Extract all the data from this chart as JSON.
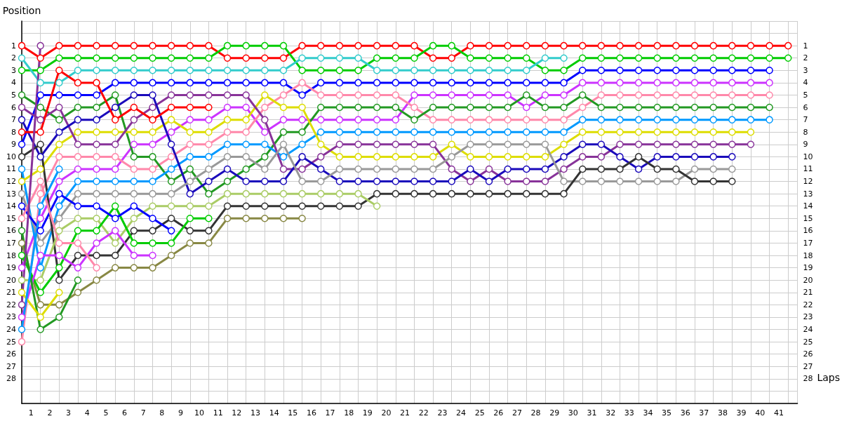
{
  "chart_data": {
    "type": "line",
    "xlabel": "Laps",
    "ylabel": "Position",
    "x": [
      0,
      1,
      2,
      3,
      4,
      5,
      6,
      7,
      8,
      9,
      10,
      11,
      12,
      13,
      14,
      15,
      16,
      17,
      18,
      19,
      20,
      21,
      22,
      23,
      24,
      25,
      26,
      27,
      28,
      29,
      30,
      31,
      32,
      33,
      34,
      35,
      36,
      37,
      38,
      39,
      40,
      41
    ],
    "xlim": [
      0,
      41.5
    ],
    "xticks": [
      {
        "value": 0.5,
        "label": "1"
      },
      {
        "value": 1.5,
        "label": "2"
      },
      {
        "value": 2.5,
        "label": "3"
      },
      {
        "value": 3.5,
        "label": "4"
      },
      {
        "value": 4.5,
        "label": "5"
      },
      {
        "value": 5.5,
        "label": "6"
      },
      {
        "value": 6.5,
        "label": "7"
      },
      {
        "value": 7.5,
        "label": "8"
      },
      {
        "value": 8.5,
        "label": "9"
      },
      {
        "value": 9.5,
        "label": "10"
      },
      {
        "value": 10.5,
        "label": "11"
      },
      {
        "value": 11.5,
        "label": "12"
      },
      {
        "value": 12.5,
        "label": "13"
      },
      {
        "value": 13.5,
        "label": "14"
      },
      {
        "value": 14.5,
        "label": "15"
      },
      {
        "value": 15.5,
        "label": "16"
      },
      {
        "value": 16.5,
        "label": "17"
      },
      {
        "value": 17.5,
        "label": "18"
      },
      {
        "value": 18.5,
        "label": "19"
      },
      {
        "value": 19.5,
        "label": "20"
      },
      {
        "value": 20.5,
        "label": "21"
      },
      {
        "value": 21.5,
        "label": "22"
      },
      {
        "value": 22.5,
        "label": "23"
      },
      {
        "value": 23.5,
        "label": "24"
      },
      {
        "value": 24.5,
        "label": "25"
      },
      {
        "value": 25.5,
        "label": "26"
      },
      {
        "value": 26.5,
        "label": "27"
      },
      {
        "value": 27.5,
        "label": "28"
      },
      {
        "value": 28.5,
        "label": "29"
      },
      {
        "value": 29.5,
        "label": "30"
      },
      {
        "value": 30.5,
        "label": "31"
      },
      {
        "value": 31.5,
        "label": "32"
      },
      {
        "value": 32.5,
        "label": "33"
      },
      {
        "value": 33.5,
        "label": "34"
      },
      {
        "value": 34.5,
        "label": "35"
      },
      {
        "value": 35.5,
        "label": "36"
      },
      {
        "value": 36.5,
        "label": "37"
      },
      {
        "value": 37.5,
        "label": "38"
      },
      {
        "value": 38.5,
        "label": "39"
      },
      {
        "value": 39.5,
        "label": "40"
      },
      {
        "value": 40.5,
        "label": "41"
      }
    ],
    "ylim": [
      30,
      -1
    ],
    "yticks": [
      1,
      2,
      3,
      4,
      5,
      6,
      7,
      8,
      9,
      10,
      11,
      12,
      13,
      14,
      15,
      16,
      17,
      18,
      19,
      20,
      21,
      22,
      23,
      24,
      25,
      26,
      27,
      28
    ],
    "y2lim": [
      30,
      -1
    ],
    "y2ticks": [
      1,
      2,
      3,
      4,
      5,
      6,
      7,
      8,
      9,
      10,
      11,
      12,
      13,
      14,
      15,
      16,
      17,
      18,
      19,
      20,
      21,
      22,
      23,
      24,
      25,
      26,
      27,
      28
    ],
    "grid": true,
    "marker": "circle",
    "line_style": "solid",
    "series": [
      {
        "color": "#ff0000",
        "values": [
          1,
          2,
          1,
          1,
          1,
          1,
          1,
          1,
          1,
          1,
          1,
          2,
          2,
          2,
          2,
          1,
          1,
          1,
          1,
          1,
          1,
          1,
          2,
          2,
          1,
          1,
          1,
          1,
          1,
          1,
          1,
          1,
          1,
          1,
          1,
          1,
          1,
          1,
          1,
          1,
          1,
          1
        ]
      },
      {
        "color": "#00cc00",
        "values": [
          3,
          3,
          2,
          2,
          2,
          2,
          2,
          2,
          2,
          2,
          2,
          1,
          1,
          1,
          1,
          3,
          3,
          3,
          3,
          2,
          2,
          2,
          1,
          1,
          2,
          2,
          2,
          2,
          3,
          3,
          2,
          2,
          2,
          2,
          2,
          2,
          2,
          2,
          2,
          2,
          2,
          2
        ]
      },
      {
        "color": "#33cccc",
        "values": [
          2,
          4,
          4,
          3,
          3,
          3,
          3,
          3,
          3,
          3,
          3,
          3,
          3,
          3,
          3,
          2,
          2,
          2,
          2,
          3,
          3,
          3,
          3,
          3,
          3,
          3,
          3,
          3,
          2,
          2,
          null,
          null,
          null,
          null,
          null,
          null,
          null,
          null,
          null,
          null,
          null,
          null
        ]
      },
      {
        "color": "#0000ff",
        "values": [
          9,
          5,
          5,
          5,
          5,
          4,
          4,
          4,
          4,
          4,
          4,
          4,
          4,
          4,
          4,
          5,
          4,
          4,
          4,
          4,
          4,
          4,
          4,
          4,
          4,
          4,
          4,
          4,
          4,
          4,
          3,
          3,
          3,
          3,
          3,
          3,
          3,
          3,
          3,
          3,
          3,
          null
        ]
      },
      {
        "color": "#cc33ff",
        "values": [
          19,
          15,
          12,
          11,
          11,
          11,
          9,
          9,
          8,
          7,
          7,
          6,
          6,
          8,
          7,
          7,
          7,
          7,
          7,
          7,
          7,
          5,
          5,
          5,
          5,
          5,
          5,
          6,
          5,
          5,
          4,
          4,
          4,
          4,
          4,
          4,
          4,
          4,
          4,
          4,
          4,
          null
        ]
      },
      {
        "color": "#ff88aa",
        "values": [
          25,
          13,
          10,
          10,
          10,
          10,
          11,
          11,
          10,
          9,
          9,
          8,
          8,
          6,
          5,
          4,
          5,
          5,
          5,
          5,
          5,
          6,
          7,
          7,
          7,
          7,
          7,
          7,
          7,
          7,
          6,
          5,
          5,
          5,
          5,
          5,
          5,
          5,
          5,
          5,
          5,
          null
        ]
      },
      {
        "color": "#229922",
        "values": [
          5,
          6,
          7,
          6,
          6,
          5,
          10,
          10,
          12,
          11,
          13,
          12,
          11,
          10,
          8,
          8,
          6,
          6,
          6,
          6,
          6,
          7,
          6,
          6,
          6,
          6,
          6,
          5,
          6,
          6,
          5,
          6,
          6,
          6,
          6,
          6,
          6,
          6,
          6,
          6,
          6,
          null
        ]
      },
      {
        "color": "#0099ff",
        "values": [
          11,
          19,
          14,
          12,
          12,
          12,
          12,
          12,
          11,
          10,
          10,
          9,
          9,
          9,
          10,
          9,
          8,
          8,
          8,
          8,
          8,
          8,
          8,
          8,
          8,
          8,
          8,
          8,
          8,
          8,
          7,
          7,
          7,
          7,
          7,
          7,
          7,
          7,
          7,
          7,
          7,
          null
        ]
      },
      {
        "color": "#dddd00",
        "values": [
          12,
          11,
          9,
          8,
          8,
          8,
          8,
          8,
          7,
          8,
          8,
          7,
          7,
          5,
          6,
          6,
          9,
          10,
          10,
          10,
          10,
          10,
          10,
          9,
          10,
          10,
          10,
          10,
          10,
          9,
          8,
          8,
          8,
          8,
          8,
          8,
          8,
          8,
          8,
          8,
          null,
          null
        ]
      },
      {
        "color": "#883399",
        "values": [
          6,
          7,
          6,
          9,
          9,
          9,
          7,
          6,
          5,
          5,
          5,
          5,
          5,
          7,
          11,
          11,
          10,
          9,
          9,
          9,
          9,
          9,
          9,
          11,
          12,
          11,
          12,
          12,
          12,
          11,
          10,
          10,
          9,
          9,
          9,
          9,
          9,
          9,
          9,
          9,
          null,
          null
        ]
      },
      {
        "color": "#1a0abb",
        "values": [
          7,
          10,
          8,
          7,
          7,
          6,
          5,
          5,
          9,
          13,
          12,
          11,
          12,
          12,
          12,
          10,
          11,
          12,
          12,
          12,
          12,
          12,
          12,
          12,
          11,
          12,
          11,
          11,
          11,
          10,
          9,
          9,
          10,
          11,
          10,
          10,
          10,
          10,
          10,
          null,
          null,
          null
        ]
      },
      {
        "color": "#999999",
        "values": [
          13,
          17,
          15,
          13,
          13,
          13,
          13,
          13,
          13,
          12,
          11,
          10,
          10,
          11,
          9,
          12,
          12,
          11,
          11,
          11,
          11,
          11,
          11,
          10,
          9,
          9,
          9,
          9,
          9,
          12,
          12,
          12,
          12,
          12,
          12,
          12,
          11,
          11,
          11,
          null,
          null,
          null
        ]
      },
      {
        "color": "#333333",
        "values": [
          10,
          9,
          20,
          18,
          18,
          18,
          16,
          16,
          15,
          16,
          16,
          14,
          14,
          14,
          14,
          14,
          14,
          14,
          14,
          13,
          13,
          13,
          13,
          13,
          13,
          13,
          13,
          13,
          13,
          13,
          11,
          11,
          11,
          10,
          11,
          11,
          12,
          12,
          12,
          null,
          null,
          null
        ]
      },
      {
        "color": "#aacc66",
        "values": [
          20,
          20,
          16,
          15,
          15,
          17,
          15,
          14,
          14,
          14,
          14,
          13,
          13,
          13,
          13,
          13,
          13,
          13,
          13,
          14,
          null,
          null,
          null,
          null,
          null,
          null,
          null,
          null,
          null,
          null,
          null,
          null,
          null,
          null,
          null,
          null,
          null,
          null,
          null,
          null,
          null,
          null
        ]
      },
      {
        "color": "#888844",
        "values": [
          17,
          22,
          22,
          21,
          20,
          19,
          19,
          19,
          18,
          17,
          17,
          15,
          15,
          15,
          15,
          15,
          null,
          null,
          null,
          null,
          null,
          null,
          null,
          null,
          null,
          null,
          null,
          null,
          null,
          null,
          null,
          null,
          null,
          null,
          null,
          null,
          null,
          null,
          null,
          null,
          null,
          null
        ]
      },
      {
        "color": "#00cc00",
        "values": [
          18,
          21,
          19,
          16,
          16,
          14,
          17,
          17,
          17,
          15,
          15,
          null,
          null,
          null,
          null,
          null,
          null,
          null,
          null,
          null,
          null,
          null,
          null,
          null,
          null,
          null,
          null,
          null,
          null,
          null,
          null,
          null,
          null,
          null,
          null,
          null,
          null,
          null,
          null,
          null,
          null,
          null
        ]
      },
      {
        "color": "#ff0000",
        "values": [
          8,
          8,
          3,
          4,
          4,
          7,
          6,
          7,
          6,
          6,
          6,
          null,
          null,
          null,
          null,
          null,
          null,
          null,
          null,
          null,
          null,
          null,
          null,
          null,
          null,
          null,
          null,
          null,
          null,
          null,
          null,
          null,
          null,
          null,
          null,
          null,
          null,
          null,
          null,
          null,
          null,
          null
        ]
      },
      {
        "color": "#0000ff",
        "values": [
          14,
          16,
          13,
          14,
          14,
          15,
          14,
          15,
          16,
          null,
          null,
          null,
          null,
          null,
          null,
          null,
          null,
          null,
          null,
          null,
          null,
          null,
          null,
          null,
          null,
          null,
          null,
          null,
          null,
          null,
          null,
          null,
          null,
          null,
          null,
          null,
          null,
          null,
          null,
          null,
          null,
          null
        ]
      },
      {
        "color": "#cc33ff",
        "values": [
          23,
          18,
          18,
          19,
          17,
          16,
          18,
          18,
          null,
          null,
          null,
          null,
          null,
          null,
          null,
          null,
          null,
          null,
          null,
          null,
          null,
          null,
          null,
          null,
          null,
          null,
          null,
          null,
          null,
          null,
          null,
          null,
          null,
          null,
          null,
          null,
          null,
          null,
          null,
          null,
          null,
          null
        ]
      },
      {
        "color": "#ff88aa",
        "values": [
          15,
          12,
          17,
          17,
          19,
          null,
          null,
          null,
          null,
          null,
          null,
          null,
          null,
          null,
          null,
          null,
          null,
          null,
          null,
          null,
          null,
          null,
          null,
          null,
          null,
          null,
          null,
          null,
          null,
          null,
          null,
          null,
          null,
          null,
          null,
          null,
          null,
          null,
          null,
          null,
          null,
          null
        ]
      },
      {
        "color": "#229922",
        "values": [
          16,
          24,
          23,
          20,
          null,
          null,
          null,
          null,
          null,
          null,
          null,
          null,
          null,
          null,
          null,
          null,
          null,
          null,
          null,
          null,
          null,
          null,
          null,
          null,
          null,
          null,
          null,
          null,
          null,
          null,
          null,
          null,
          null,
          null,
          null,
          null,
          null,
          null,
          null,
          null,
          null,
          null
        ]
      },
      {
        "color": "#dddd00",
        "values": [
          21,
          23,
          21,
          null,
          null,
          null,
          null,
          null,
          null,
          null,
          null,
          null,
          null,
          null,
          null,
          null,
          null,
          null,
          null,
          null,
          null,
          null,
          null,
          null,
          null,
          null,
          null,
          null,
          null,
          null,
          null,
          null,
          null,
          null,
          null,
          null,
          null,
          null,
          null,
          null,
          null,
          null
        ]
      },
      {
        "color": "#0099ff",
        "values": [
          24,
          14,
          11,
          null,
          null,
          null,
          null,
          null,
          null,
          null,
          null,
          null,
          null,
          null,
          null,
          null,
          null,
          null,
          null,
          null,
          null,
          null,
          null,
          null,
          null,
          null,
          null,
          null,
          null,
          null,
          null,
          null,
          null,
          null,
          null,
          null,
          null,
          null,
          null,
          null,
          null,
          null
        ]
      },
      {
        "color": "#883399",
        "values": [
          22,
          1,
          null,
          null,
          null,
          null,
          null,
          null,
          null,
          null,
          null,
          null,
          null,
          null,
          null,
          null,
          null,
          null,
          null,
          null,
          null,
          null,
          null,
          null,
          null,
          null,
          null,
          null,
          null,
          null,
          null,
          null,
          null,
          null,
          null,
          null,
          null,
          null,
          null,
          null,
          null,
          null
        ]
      }
    ]
  }
}
